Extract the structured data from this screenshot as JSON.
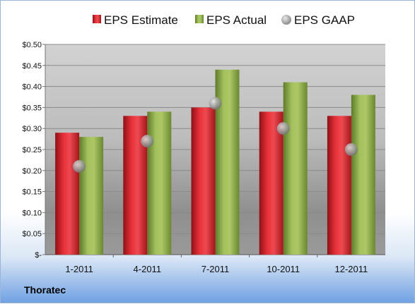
{
  "company": "Thoratec",
  "colors": {
    "estimate": "#d9262e",
    "actual": "#94b050",
    "gaap": "#a3a3a3"
  },
  "chart_data": {
    "type": "bar",
    "title": "",
    "xlabel": "",
    "ylabel": "",
    "categories": [
      "1-2011",
      "4-2011",
      "7-2011",
      "10-2011",
      "12-2011"
    ],
    "series": [
      {
        "name": "EPS Estimate",
        "values": [
          0.29,
          0.33,
          0.35,
          0.34,
          0.33
        ]
      },
      {
        "name": "EPS Actual",
        "values": [
          0.28,
          0.34,
          0.44,
          0.41,
          0.38
        ]
      },
      {
        "name": "EPS GAAP",
        "kind": "scatter",
        "values": [
          0.21,
          0.27,
          0.36,
          0.3,
          0.25
        ]
      }
    ],
    "ylim": [
      0,
      0.5
    ],
    "yticks": [
      0,
      0.05,
      0.1,
      0.15,
      0.2,
      0.25,
      0.3,
      0.35,
      0.4,
      0.45,
      0.5
    ],
    "ytick_labels": [
      "$-",
      "$0.05",
      "$0.10",
      "$0.15",
      "$0.20",
      "$0.25",
      "$0.30",
      "$0.35",
      "$0.40",
      "$0.45",
      "$0.50"
    ],
    "grid": true,
    "legend": "top"
  }
}
